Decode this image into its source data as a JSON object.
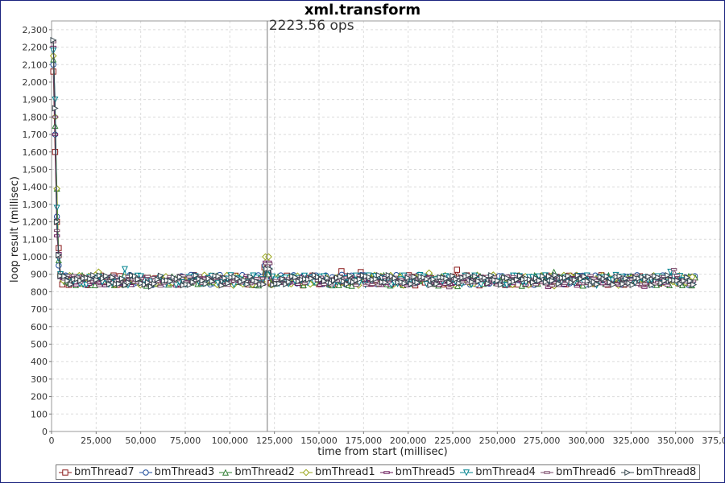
{
  "chart_data": {
    "type": "line",
    "title": "xml.transform",
    "xlabel": "time from start (millisec)",
    "ylabel": "loop result (millisec)",
    "xlim": [
      0,
      375000
    ],
    "ylim": [
      0,
      2350
    ],
    "x_ticks": [
      "0",
      "25,000",
      "50,000",
      "75,000",
      "100,000",
      "125,000",
      "150,000",
      "175,000",
      "200,000",
      "225,000",
      "250,000",
      "275,000",
      "300,000",
      "325,000",
      "350,000",
      "375,000"
    ],
    "y_ticks": [
      "0",
      "100",
      "200",
      "300",
      "400",
      "500",
      "600",
      "700",
      "800",
      "900",
      "1,000",
      "1,100",
      "1,200",
      "1,300",
      "1,400",
      "1,500",
      "1,600",
      "1,700",
      "1,800",
      "1,900",
      "2,000",
      "2,100",
      "2,200",
      "2,300"
    ],
    "grid": true,
    "legend_position": "bottom",
    "annotation": {
      "x": 121000,
      "text": "2223.56 ops"
    },
    "series": [
      {
        "name": "bmThread7",
        "marker": "square",
        "color": "#8b1a1a",
        "start": [
          [
            1000,
            2060
          ],
          [
            2000,
            1600
          ],
          [
            3000,
            1200
          ],
          [
            4000,
            1050
          ],
          [
            5000,
            900
          ]
        ],
        "plateau": 866,
        "spike": 940,
        "end_x": 361000
      },
      {
        "name": "bmThread3",
        "marker": "circle",
        "color": "#1f4e9c",
        "start": [
          [
            1000,
            2100
          ],
          [
            2000,
            1700
          ],
          [
            3000,
            1230
          ],
          [
            4000,
            950
          ],
          [
            5000,
            890
          ]
        ],
        "plateau": 868,
        "spike": 950,
        "end_x": 361000
      },
      {
        "name": "bmThread2",
        "marker": "triangle-up",
        "color": "#2e7d32",
        "start": [
          [
            1000,
            2130
          ],
          [
            2000,
            1750
          ],
          [
            3000,
            1390
          ],
          [
            4000,
            980
          ],
          [
            5000,
            900
          ]
        ],
        "plateau": 864,
        "spike": 900,
        "end_x": 361000
      },
      {
        "name": "bmThread1",
        "marker": "diamond",
        "color": "#9aa61a",
        "start": [
          [
            1000,
            2150
          ],
          [
            2000,
            1800
          ],
          [
            3000,
            1390
          ],
          [
            4000,
            1000
          ],
          [
            5000,
            895
          ]
        ],
        "plateau": 866,
        "spike": 1000,
        "end_x": 361000
      },
      {
        "name": "bmThread5",
        "marker": "minus",
        "color": "#6a1b5a",
        "start": [
          [
            1000,
            2200
          ],
          [
            2000,
            1700
          ],
          [
            3000,
            1120
          ],
          [
            4000,
            1020
          ],
          [
            5000,
            880
          ]
        ],
        "plateau": 862,
        "spike": 970,
        "end_x": 361000
      },
      {
        "name": "bmThread4",
        "marker": "triangle-down",
        "color": "#00838f",
        "start": [
          [
            1000,
            2180
          ],
          [
            2000,
            1900
          ],
          [
            3000,
            1280
          ],
          [
            4000,
            990
          ],
          [
            5000,
            900
          ]
        ],
        "plateau": 866,
        "spike": 920,
        "end_x": 361000
      },
      {
        "name": "bmThread6",
        "marker": "minus",
        "color": "#7a4a6a",
        "start": [
          [
            1000,
            2230
          ],
          [
            2000,
            1800
          ],
          [
            3000,
            1150
          ],
          [
            4000,
            1000
          ],
          [
            5000,
            885
          ]
        ],
        "plateau": 864,
        "spike": 960,
        "end_x": 361000
      },
      {
        "name": "bmThread8",
        "marker": "triangle-right",
        "color": "#37474f",
        "start": [
          [
            1000,
            2240
          ],
          [
            2000,
            1850
          ],
          [
            3000,
            1200
          ],
          [
            4000,
            1010
          ],
          [
            5000,
            890
          ]
        ],
        "plateau": 866,
        "spike": 930,
        "end_x": 361000
      }
    ]
  }
}
